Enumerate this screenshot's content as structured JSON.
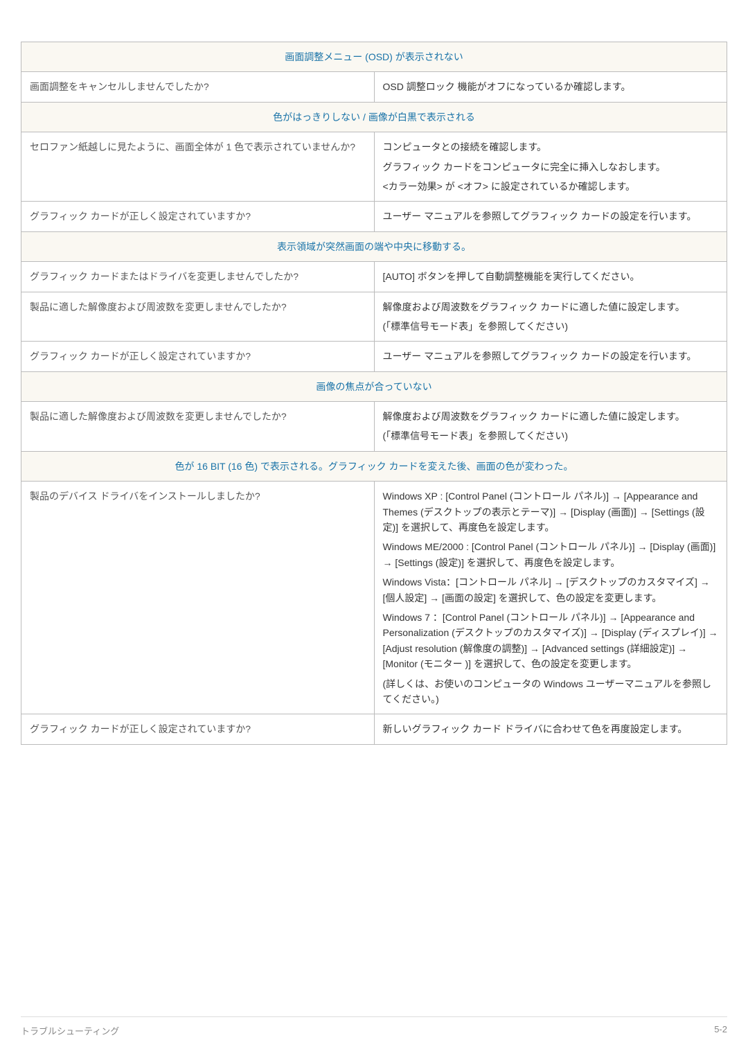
{
  "colors": {
    "section_bg": "#faf8f2",
    "section_text": "#1a73a8",
    "border": "#bbbbbb",
    "left_text": "#555555",
    "right_text": "#333333",
    "footer_text": "#888888",
    "footer_border": "#dddddd",
    "page_bg": "#ffffff"
  },
  "sections": [
    {
      "title": "画面調整メニュー (OSD) が表示されない",
      "rows": [
        {
          "q": "画面調整をキャンセルしませんでしたか?",
          "a": [
            "OSD 調整ロック 機能がオフになっているか確認します。"
          ]
        }
      ]
    },
    {
      "title": "色がはっきりしない / 画像が白黒で表示される",
      "rows": [
        {
          "q": "セロファン紙越しに見たように、画面全体が 1 色で表示されていませんか?",
          "a": [
            "コンピュータとの接続を確認します。",
            "グラフィック カードをコンピュータに完全に挿入しなおします。",
            "<カラー効果> が <オフ> に設定されているか確認します。"
          ]
        },
        {
          "q": "グラフィック カードが正しく設定されていますか?",
          "a": [
            "ユーザー マニュアルを参照してグラフィック カードの設定を行います。"
          ]
        }
      ]
    },
    {
      "title": "表示領域が突然画面の端や中央に移動する。",
      "rows": [
        {
          "q": "グラフィック カードまたはドライバを変更しませんでしたか?",
          "a": [
            "[AUTO] ボタンを押して自動調整機能を実行してください。"
          ]
        },
        {
          "q": "製品に適した解像度および周波数を変更しませんでしたか?",
          "a": [
            "解像度および周波数をグラフィック カードに適した値に設定します。",
            "(「標準信号モード表」を参照してください)"
          ]
        },
        {
          "q": "グラフィック カードが正しく設定されていますか?",
          "a": [
            "ユーザー マニュアルを参照してグラフィック カードの設定を行います。"
          ]
        }
      ]
    },
    {
      "title": "画像の焦点が合っていない",
      "rows": [
        {
          "q": "製品に適した解像度および周波数を変更しませんでしたか?",
          "a": [
            "解像度および周波数をグラフィック カードに適した値に設定します。",
            "(「標準信号モード表」を参照してください)"
          ]
        }
      ]
    },
    {
      "title": "色が 16 BIT (16 色) で表示される。グラフィック カードを変えた後、画面の色が変わった。",
      "rows": [
        {
          "q": "製品のデバイス ドライバをインストールしましたか?",
          "a": [
            "Windows XP : [Control Panel (コントロール パネル)] → [Appearance and Themes (デスクトップの表示とテーマ)] → [Display (画面)] → [Settings (設定)] を選択して、再度色を設定します。",
            "Windows ME/2000 : [Control Panel (コントロール パネル)] → [Display (画面)] → [Settings (設定)] を選択して、再度色を設定します。",
            "Windows Vista：[コントロール パネル] → [デスクトップのカスタマイズ] → [個人設定] → [画面の設定] を選択して、色の設定を変更します。",
            "Windows 7 ：[Control Panel (コントロール パネル)] → [Appearance and Personalization (デスクトップのカスタマイズ)] → [Display (ディスプレイ)] → [Adjust resolution (解像度の調整)] → [Advanced settings (詳細設定)] → [Monitor (モニター )] を選択して、色の設定を変更します。",
            "(詳しくは、お使いのコンピュータの Windows ユーザーマニュアルを参照してください。)"
          ]
        },
        {
          "q": "グラフィック カードが正しく設定されていますか?",
          "a": [
            "新しいグラフィック カード ドライバに合わせて色を再度設定します。"
          ]
        }
      ]
    }
  ],
  "footer": {
    "left": "トラブルシューティング",
    "right": "5-2"
  }
}
